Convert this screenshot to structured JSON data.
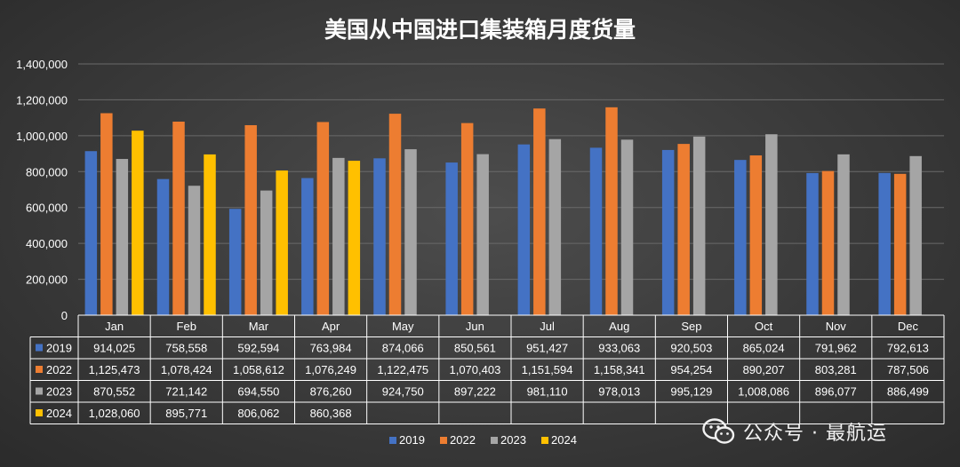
{
  "colors": {
    "2019": "#4472C4",
    "2022": "#ED7D31",
    "2023": "#A5A5A5",
    "2024": "#FFC000",
    "grid": "#6a6a6a",
    "text": "#ffffff"
  },
  "chart_data": {
    "type": "bar",
    "title": "美国从中国进口集装箱月度货量",
    "categories": [
      "Jan",
      "Feb",
      "Mar",
      "Apr",
      "May",
      "Jun",
      "Jul",
      "Aug",
      "Sep",
      "Oct",
      "Nov",
      "Dec"
    ],
    "ylim": [
      0,
      1400000
    ],
    "yticks": [
      0,
      200000,
      400000,
      600000,
      800000,
      1000000,
      1200000,
      1400000
    ],
    "ytick_labels": [
      "0",
      "200,000",
      "400,000",
      "600,000",
      "800,000",
      "1,000,000",
      "1,200,000",
      "1,400,000"
    ],
    "grid": true,
    "legend": "bottom",
    "series": [
      {
        "name": "2019",
        "values": [
          914025,
          758558,
          592594,
          763984,
          874066,
          850561,
          951427,
          933063,
          920503,
          865024,
          791962,
          792613
        ],
        "labels": [
          "914,025",
          "758,558",
          "592,594",
          "763,984",
          "874,066",
          "850,561",
          "951,427",
          "933,063",
          "920,503",
          "865,024",
          "791,962",
          "792,613"
        ]
      },
      {
        "name": "2022",
        "values": [
          1125473,
          1078424,
          1058612,
          1076249,
          1122475,
          1070403,
          1151594,
          1158341,
          954254,
          890207,
          803281,
          787506
        ],
        "labels": [
          "1,125,473",
          "1,078,424",
          "1,058,612",
          "1,076,249",
          "1,122,475",
          "1,070,403",
          "1,151,594",
          "1,158,341",
          "954,254",
          "890,207",
          "803,281",
          "787,506"
        ]
      },
      {
        "name": "2023",
        "values": [
          870552,
          721142,
          694550,
          876260,
          924750,
          897222,
          981110,
          978013,
          995129,
          1008086,
          896077,
          886499
        ],
        "labels": [
          "870,552",
          "721,142",
          "694,550",
          "876,260",
          "924,750",
          "897,222",
          "981,110",
          "978,013",
          "995,129",
          "1,008,086",
          "896,077",
          "886,499"
        ]
      },
      {
        "name": "2024",
        "values": [
          1028060,
          895771,
          806062,
          860368,
          null,
          null,
          null,
          null,
          null,
          null,
          null,
          null
        ],
        "labels": [
          "1,028,060",
          "895,771",
          "806,062",
          "860,368",
          "",
          "",
          "",
          "",
          "",
          "",
          "",
          ""
        ]
      }
    ]
  },
  "watermark": {
    "text": "公众号 · 最航运",
    "icon": "wechat-icon"
  }
}
